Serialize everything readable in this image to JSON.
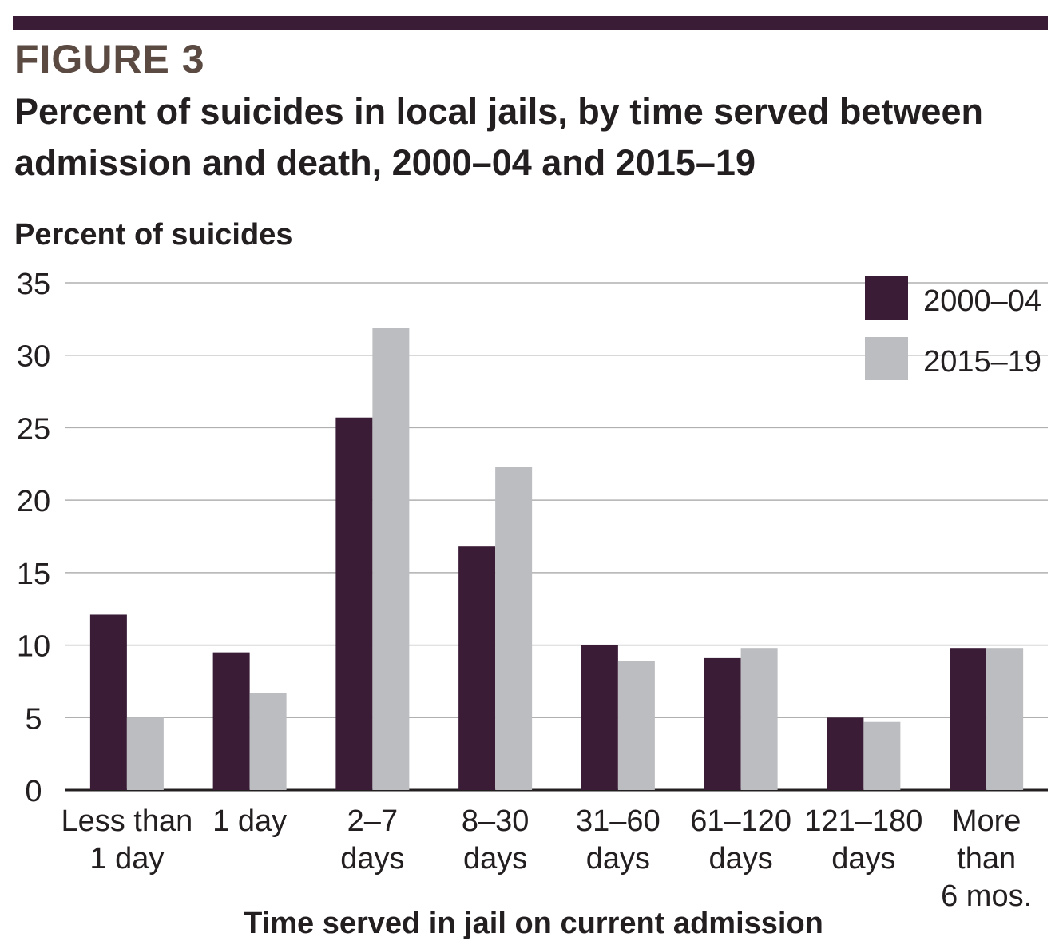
{
  "figure": {
    "label": "FIGURE 3",
    "title": "Percent of suicides in local jails, by time served between admission and death, 2000–04 and 2015–19"
  },
  "colors": {
    "rule": "#3a1c37",
    "series_2000": "#3a1c37",
    "series_2015": "#bcbdc0",
    "grid": "#b0b0b0"
  },
  "chart_data": {
    "type": "bar",
    "ylabel": "Percent of suicides",
    "xlabel": "Time served in jail on current admission",
    "ylim": [
      0,
      35
    ],
    "yticks": [
      0,
      5,
      10,
      15,
      20,
      25,
      30,
      35
    ],
    "grid": true,
    "legend_position": "top-right",
    "categories": [
      [
        "Less than",
        "1 day"
      ],
      [
        "1 day"
      ],
      [
        "2–7",
        "days"
      ],
      [
        "8–30",
        "days"
      ],
      [
        "31–60",
        "days"
      ],
      [
        "61–120",
        "days"
      ],
      [
        "121–180",
        "days"
      ],
      [
        "More",
        "than",
        "6 mos."
      ]
    ],
    "series": [
      {
        "name": "2000–04",
        "color": "#3a1c37",
        "values": [
          12.1,
          9.5,
          25.7,
          16.8,
          10.0,
          9.1,
          5.0,
          9.8
        ]
      },
      {
        "name": "2015–19",
        "color": "#bcbdc0",
        "values": [
          5.0,
          6.7,
          31.9,
          22.3,
          8.9,
          9.8,
          4.7,
          9.8
        ]
      }
    ]
  }
}
